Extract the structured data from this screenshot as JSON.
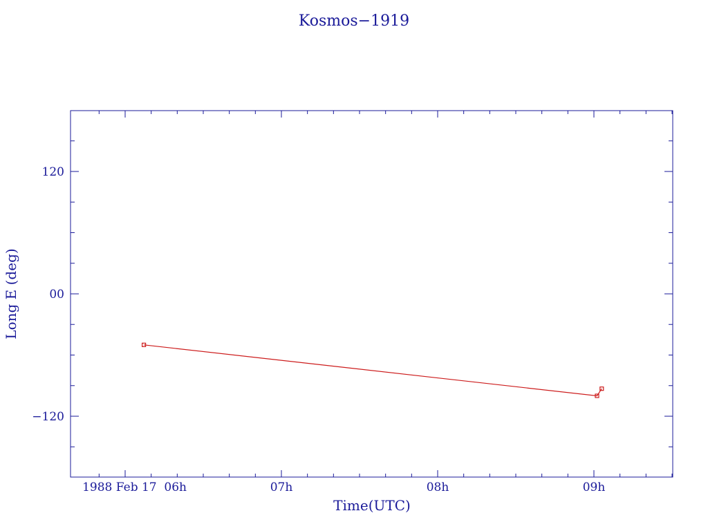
{
  "chart_data": {
    "type": "line",
    "title": "Kosmos−1919",
    "xlabel": "Time(UTC)",
    "ylabel": "Long E (deg)",
    "x_tick_labels": [
      "1988 Feb 17  06h",
      "07h",
      "08h",
      "09h"
    ],
    "y_tick_labels": [
      "120",
      "00",
      "−120"
    ],
    "x_range_hours": [
      5.75,
      9.52
    ],
    "ylim": [
      -180,
      180
    ],
    "grid": false,
    "series": [
      {
        "points": [
          {
            "t": "1988-02-17 06:07",
            "x_hours": 6.12,
            "y": -50
          },
          {
            "t": "1988-02-17 09:01",
            "x_hours": 9.02,
            "y": -100
          },
          {
            "t": "1988-02-17 09:03",
            "x_hours": 9.05,
            "y": -93
          }
        ]
      }
    ],
    "colors": {
      "axes": "#1a1a99",
      "text": "#1a1a99",
      "series": "#cc1a1a"
    }
  }
}
